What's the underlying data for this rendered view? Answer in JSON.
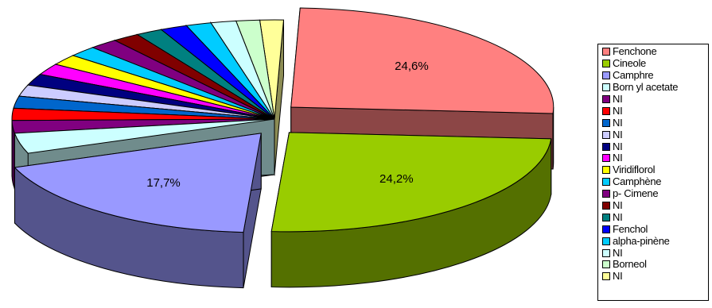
{
  "chart_data": {
    "type": "pie",
    "style": "3d-exploded",
    "legend_position": "right",
    "slices": [
      {
        "label": "Fenchone",
        "value": 24.6,
        "color": "#ff8080",
        "shown_label": "24,6%"
      },
      {
        "label": "Cineole",
        "value": 24.2,
        "color": "#99cc00",
        "shown_label": "24,2%"
      },
      {
        "label": "Camphre",
        "value": 17.7,
        "color": "#9999ff",
        "shown_label": "17,7%"
      },
      {
        "label": "Born yl acetate",
        "value": 3.2,
        "color": "#ccffff"
      },
      {
        "label": "NI",
        "value": 2.0,
        "color": "#800080"
      },
      {
        "label": "NI",
        "value": 1.9,
        "color": "#ff0000"
      },
      {
        "label": "NI",
        "value": 1.9,
        "color": "#0066cc"
      },
      {
        "label": "NI",
        "value": 1.8,
        "color": "#ccccff"
      },
      {
        "label": "NI",
        "value": 1.8,
        "color": "#000080"
      },
      {
        "label": "NI",
        "value": 1.8,
        "color": "#ff00ff"
      },
      {
        "label": "Viridiflorol",
        "value": 1.7,
        "color": "#ffff00"
      },
      {
        "label": "Camphène",
        "value": 1.7,
        "color": "#00ccff"
      },
      {
        "label": "p- Cimene",
        "value": 1.7,
        "color": "#800080"
      },
      {
        "label": "NI",
        "value": 1.6,
        "color": "#800000"
      },
      {
        "label": "NI",
        "value": 1.6,
        "color": "#008080"
      },
      {
        "label": "Fenchol",
        "value": 1.6,
        "color": "#0000ff"
      },
      {
        "label": "alpha-pinène",
        "value": 1.5,
        "color": "#00ccff"
      },
      {
        "label": "NI",
        "value": 1.5,
        "color": "#ccffff"
      },
      {
        "label": "Borneol",
        "value": 1.4,
        "color": "#ccffcc"
      },
      {
        "label": "NI",
        "value": 1.4,
        "color": "#ffff99"
      }
    ]
  }
}
